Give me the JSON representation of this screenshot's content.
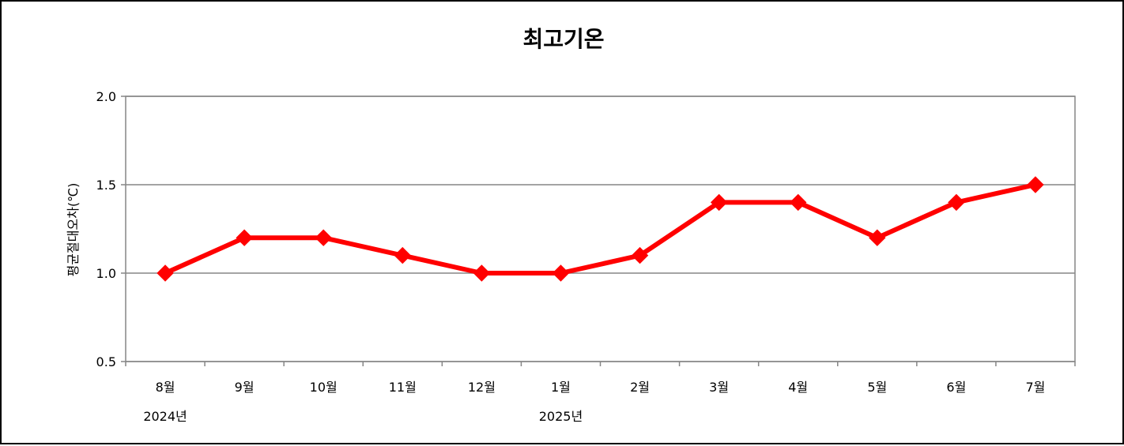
{
  "chart_data": {
    "type": "line",
    "title": "최고기온",
    "ylabel": "평균절대오차(℃)",
    "xlabel": "",
    "ylim": [
      0.5,
      2.0
    ],
    "yticks": [
      "0.5",
      "1.0",
      "1.5",
      "2.0"
    ],
    "grid": true,
    "categories": [
      "8월",
      "9월",
      "10월",
      "11월",
      "12월",
      "1월",
      "2월",
      "3월",
      "4월",
      "5월",
      "6월",
      "7월"
    ],
    "year_labels": [
      {
        "label": "2024년",
        "category_index": 0
      },
      {
        "label": "2025년",
        "category_index": 5
      }
    ],
    "series": [
      {
        "values": [
          1.0,
          1.2,
          1.2,
          1.1,
          1.0,
          1.0,
          1.1,
          1.4,
          1.4,
          1.2,
          1.4,
          1.5
        ],
        "color": "#ff0000",
        "marker": "diamond"
      }
    ]
  }
}
